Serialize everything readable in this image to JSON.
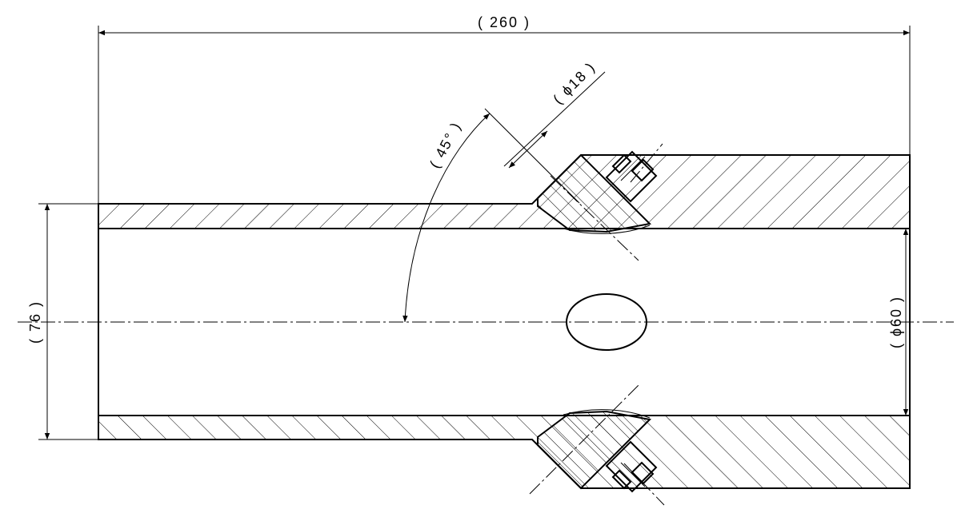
{
  "drawing": {
    "dimensions": {
      "overall_length": "( 260 )",
      "outer_diameter": "( 76 )",
      "bore_diameter": "( ϕ60 )",
      "port_diameter": "( ϕ18 )",
      "port_angle": "( 45° )"
    },
    "colors": {
      "line": "#000000",
      "background": "#ffffff"
    }
  }
}
